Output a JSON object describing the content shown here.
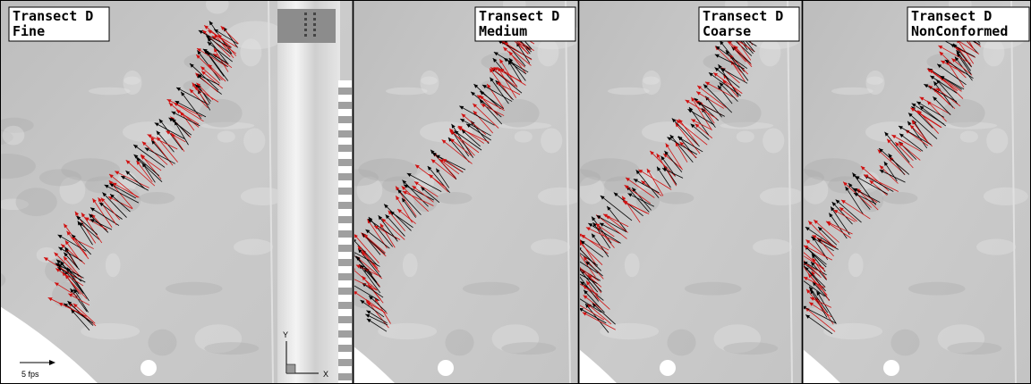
{
  "panels": [
    {
      "lines": [
        "Transect D",
        "Fine"
      ]
    },
    {
      "lines": [
        "Transect D",
        "Medium"
      ]
    },
    {
      "lines": [
        "Transect D",
        "Coarse"
      ]
    },
    {
      "lines": [
        "Transect D",
        "NonConformed"
      ]
    }
  ],
  "scale_label": "5 fps",
  "axes": {
    "y": "Y",
    "x": "X"
  }
}
